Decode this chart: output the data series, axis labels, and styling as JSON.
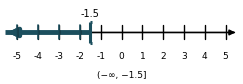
{
  "x_min": -5,
  "x_max": 5,
  "ticks": [
    -5,
    -4,
    -3,
    -2,
    -1,
    0,
    1,
    2,
    3,
    4,
    5
  ],
  "inequality_point": -1.5,
  "line_color": "#1C4F5E",
  "axis_color": "#000000",
  "label_above": "-1.5",
  "label_below": "(−∞, −1.5]",
  "bracket_serif_right": true,
  "figsize": [
    2.43,
    0.84
  ],
  "dpi": 100
}
